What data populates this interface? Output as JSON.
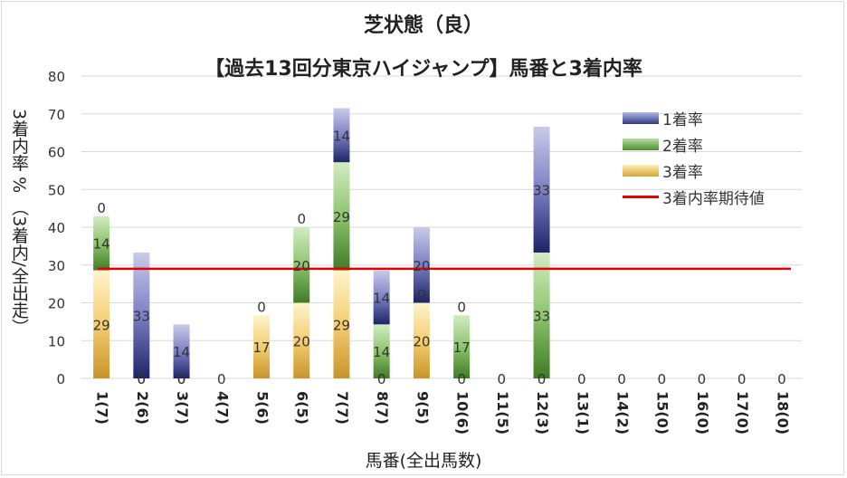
{
  "title": "芝状態（良）",
  "subtitle": "【過去13回分東京ハイジャンプ】馬番と3着内率",
  "chart_data": {
    "type": "bar",
    "stacked": true,
    "title": "芝状態（良）",
    "subtitle": "【過去13回分東京ハイジャンプ】馬番と3着内率",
    "xlabel": "馬番(全出馬数)",
    "ylabel": "3着内率 %  （3着内/全出走）",
    "ylim": [
      0,
      80
    ],
    "yticks": [
      0,
      10,
      20,
      30,
      40,
      50,
      60,
      70,
      80
    ],
    "categories": [
      "1(7)",
      "2(6)",
      "3(7)",
      "4(7)",
      "5(6)",
      "6(5)",
      "7(7)",
      "8(7)",
      "9(5)",
      "10(6)",
      "11(5)",
      "12(3)",
      "13(1)",
      "14(2)",
      "15(0)",
      "16(0)",
      "17(0)",
      "18(0)"
    ],
    "series": [
      {
        "name": "3着率",
        "color": "#d4a637",
        "values": [
          28.6,
          0,
          0,
          0,
          16.7,
          20,
          28.6,
          0,
          20,
          0,
          0,
          0,
          0,
          0,
          0,
          0,
          0,
          0
        ],
        "labels": [
          "29",
          "0",
          "0",
          "0",
          "17",
          "20",
          "29",
          "0",
          "20",
          "0",
          "0",
          "0",
          "0",
          "0",
          "0",
          "0",
          "0",
          "0"
        ]
      },
      {
        "name": "2着率",
        "color": "#5b9a3c",
        "values": [
          14.3,
          0,
          0,
          0,
          0,
          20,
          28.6,
          14.3,
          0,
          16.7,
          0,
          33.3,
          0,
          0,
          0,
          0,
          0,
          0
        ],
        "labels": [
          "14",
          "0",
          "0",
          "",
          "0",
          "20",
          "29",
          "14",
          "0",
          "17",
          "",
          "33",
          "",
          "",
          "",
          "",
          "",
          ""
        ]
      },
      {
        "name": "1着率",
        "color": "#2e3a87",
        "values": [
          0,
          33.3,
          14.3,
          0,
          0,
          0,
          14.3,
          14.3,
          20,
          0,
          0,
          33.3,
          0,
          0,
          0,
          0,
          0,
          0
        ],
        "labels": [
          "0",
          "33",
          "14",
          "",
          "",
          "0",
          "14",
          "14",
          "20",
          "0",
          "",
          "33",
          "",
          "",
          "",
          "",
          "",
          ""
        ]
      }
    ],
    "expected_line": {
      "name": "3着内率期待値",
      "value": 29,
      "color": "#e00000"
    }
  },
  "legend": [
    {
      "label": "1着率",
      "color": "#2e3a87"
    },
    {
      "label": "2着率",
      "color": "#5b9a3c"
    },
    {
      "label": "3着率",
      "color": "#d4a637"
    },
    {
      "label": "3着内率期待値",
      "color": "#e00000"
    }
  ]
}
